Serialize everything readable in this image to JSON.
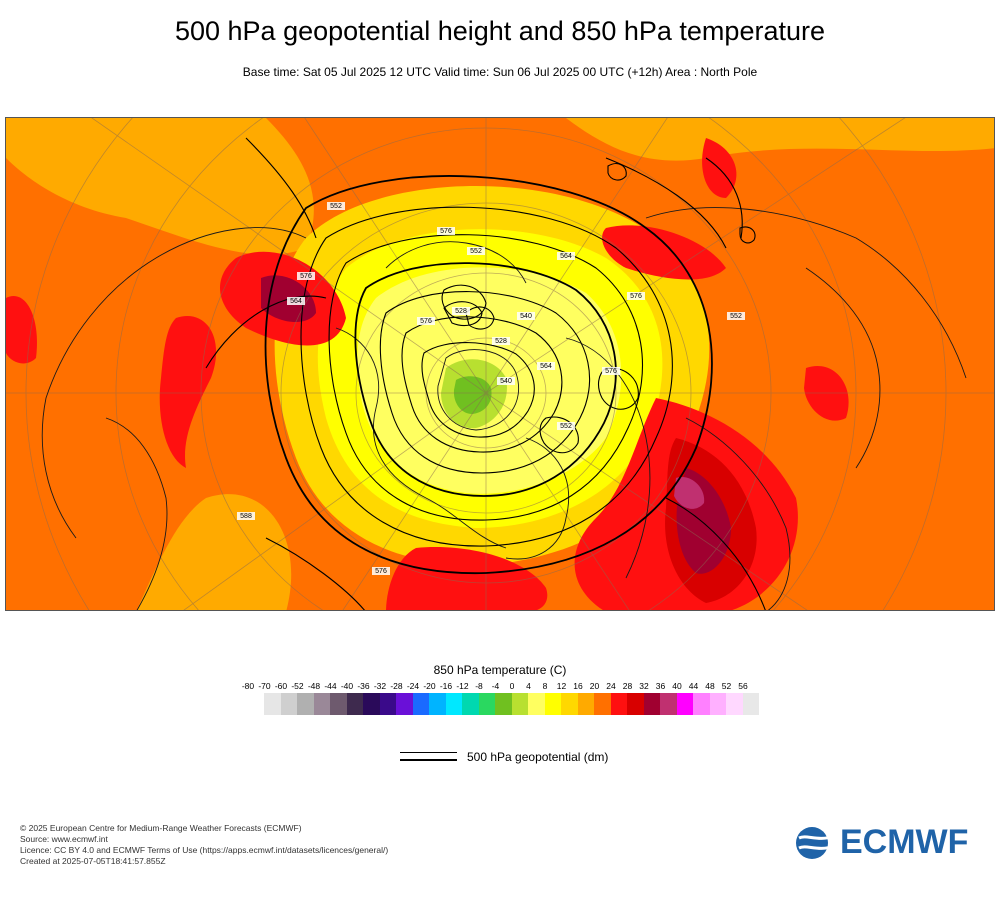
{
  "header": {
    "title": "500 hPa geopotential height and 850 hPa temperature",
    "subtitle": "Base time: Sat 05 Jul 2025 12 UTC Valid time: Sun 06 Jul 2025 00 UTC (+12h) Area : North Pole"
  },
  "map": {
    "contour_labels": [
      "552",
      "576",
      "576",
      "552",
      "528",
      "576",
      "564",
      "576",
      "528",
      "540",
      "564",
      "576",
      "540",
      "552",
      "588",
      "576",
      "564",
      "552"
    ]
  },
  "legend": {
    "title": "850 hPa temperature (C)",
    "ticks": [
      "-80",
      "-70",
      "-60",
      "-52",
      "-48",
      "-44",
      "-40",
      "-36",
      "-32",
      "-28",
      "-24",
      "-20",
      "-16",
      "-12",
      "-8",
      "-4",
      "0",
      "4",
      "8",
      "12",
      "16",
      "20",
      "24",
      "28",
      "32",
      "36",
      "40",
      "44",
      "48",
      "52",
      "56"
    ],
    "colors": [
      "#e6e6e6",
      "#cfcfcf",
      "#b0b0b0",
      "#9a8898",
      "#6e5a6e",
      "#3e2a4e",
      "#2a0a5a",
      "#3a0a8a",
      "#6a10d8",
      "#1a6aff",
      "#00b4ff",
      "#00e8ff",
      "#00d8b0",
      "#2ad860",
      "#70c020",
      "#b8e030",
      "#ffff60",
      "#ffff00",
      "#ffd800",
      "#ffaa00",
      "#ff7000",
      "#ff1010",
      "#d80000",
      "#a00030",
      "#c03070",
      "#ff00ff",
      "#ff80ff",
      "#ffb0ff",
      "#ffd8ff",
      "#e8e8e8"
    ]
  },
  "contour_key": {
    "label": "500 hPa geopotential (dm)"
  },
  "footer": {
    "lines": [
      "© 2025 European Centre for Medium-Range Weather Forecasts (ECMWF)",
      "Source: www.ecmwf.int",
      "Licence: CC BY 4.0 and ECMWF Terms of Use (https://apps.ecmwf.int/datasets/licences/general/)",
      "Created at 2025-07-05T18:41:57.855Z"
    ]
  },
  "logo": {
    "text": "ECMWF",
    "color": "#1f63a8"
  }
}
